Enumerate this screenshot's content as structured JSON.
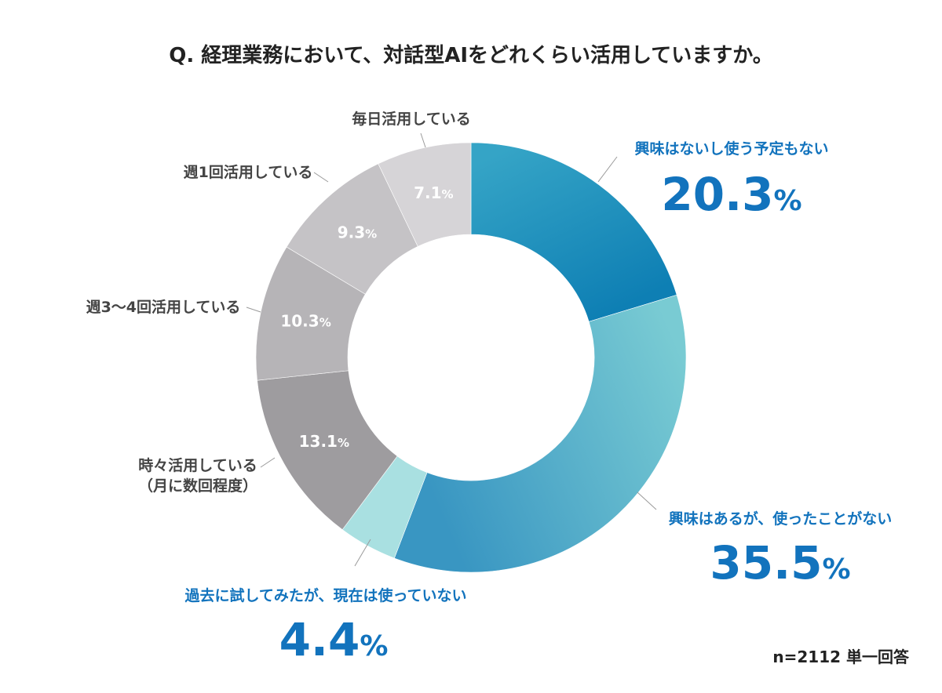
{
  "chart_data": {
    "type": "pie",
    "title": "Q. 経理業務において、対話型AIをどれくらい活用していますか。",
    "note": "n=2112 単一回答",
    "slices": [
      {
        "label": "興味はないし使う予定もない",
        "value": 20.3,
        "display": "20.3",
        "color_start": "#0e7fb4",
        "color_end": "#35a4c6",
        "highlight": true
      },
      {
        "label": "興味はあるが、使ったことがない",
        "value": 35.5,
        "display": "35.5",
        "color_start": "#3996c2",
        "color_end": "#79cbd3",
        "highlight": true
      },
      {
        "label": "過去に試してみたが、現在は使っていない",
        "value": 4.4,
        "display": "4.4",
        "color_start": "#a9e0e1",
        "color_end": "#a9e0e1",
        "highlight": true
      },
      {
        "label": "時々活用している\n（月に数回程度）",
        "value": 13.1,
        "display": "13.1",
        "color_start": "#9e9c9f",
        "color_end": "#9e9c9f",
        "highlight": false
      },
      {
        "label": "週3〜4回活用している",
        "value": 10.3,
        "display": "10.3",
        "color_start": "#b6b4b7",
        "color_end": "#b6b4b7",
        "highlight": false
      },
      {
        "label": "週1回活用している",
        "value": 9.3,
        "display": "9.3",
        "color_start": "#c5c3c6",
        "color_end": "#c5c3c6",
        "highlight": false
      },
      {
        "label": "毎日活用している",
        "value": 7.1,
        "display": "7.1",
        "color_start": "#d6d4d7",
        "color_end": "#d6d4d7",
        "highlight": false
      }
    ],
    "unit": "%",
    "start_angle_deg": 0,
    "direction": "clockwise",
    "accent_color": "#1273bd",
    "muted_text_color": "#444444"
  }
}
